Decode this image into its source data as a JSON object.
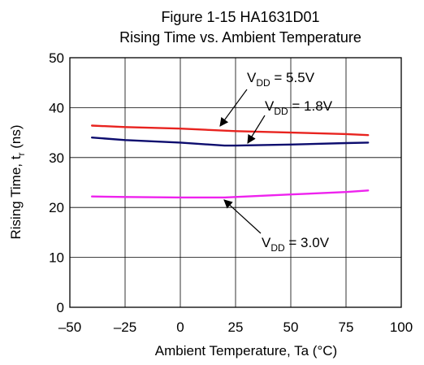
{
  "chart_data": {
    "type": "line",
    "title_lines": [
      "Figure 1-15 HA1631D01",
      "Rising Time vs. Ambient Temperature"
    ],
    "xlabel": "Ambient Temperature,   Ta   (°C)",
    "ylabel": "Rising Time,   t",
    "ylabel_sub": "r",
    "ylabel_unit": "(ns)",
    "xlim": [
      -50,
      100
    ],
    "ylim": [
      0,
      50
    ],
    "x_ticks": [
      -50,
      -25,
      0,
      25,
      50,
      75,
      100
    ],
    "x_tick_labels": [
      "–50",
      "–25",
      "0",
      "25",
      "50",
      "75",
      "100"
    ],
    "y_ticks": [
      0,
      10,
      20,
      30,
      40,
      50
    ],
    "y_tick_labels": [
      "0",
      "10",
      "20",
      "30",
      "40",
      "50"
    ],
    "grid": true,
    "series": [
      {
        "name": "VDD = 5.5V",
        "color": "#e8231f",
        "x": [
          -40,
          -25,
          0,
          25,
          50,
          75,
          85
        ],
        "y": [
          36.4,
          36.1,
          35.8,
          35.3,
          35.0,
          34.7,
          34.5
        ]
      },
      {
        "name": "VDD = 1.8V",
        "color": "#0c0c6e",
        "x": [
          -40,
          -25,
          0,
          20,
          25,
          50,
          75,
          85
        ],
        "y": [
          34.0,
          33.5,
          33.0,
          32.4,
          32.4,
          32.6,
          32.9,
          33.0
        ]
      },
      {
        "name": "VDD = 3.0V",
        "color": "#ee22ee",
        "x": [
          -40,
          -25,
          0,
          20,
          25,
          50,
          75,
          85
        ],
        "y": [
          22.2,
          22.1,
          22.0,
          22.0,
          22.1,
          22.6,
          23.1,
          23.4
        ]
      }
    ],
    "annotations": [
      {
        "main": "V",
        "sub": "DD",
        "rest": " = 5.5V",
        "target_series": "VDD = 5.5V"
      },
      {
        "main": "V",
        "sub": "DD",
        "rest": " = 1.8V",
        "target_series": "VDD = 1.8V"
      },
      {
        "main": "V",
        "sub": "DD",
        "rest": " = 3.0V",
        "target_series": "VDD = 3.0V"
      }
    ]
  }
}
